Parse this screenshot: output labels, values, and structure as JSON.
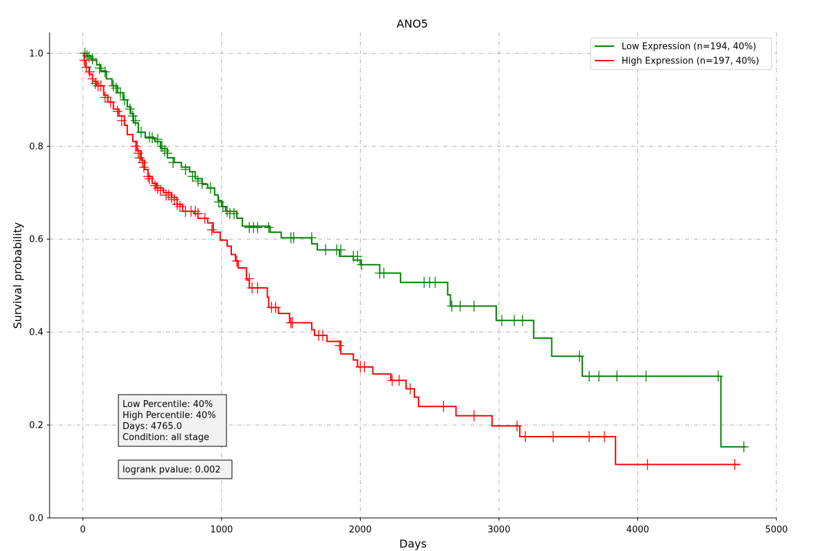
{
  "chart_data": {
    "type": "line",
    "title": "ANO5",
    "xlabel": "Days",
    "ylabel": "Survival probability",
    "xlim": [
      -240,
      5000
    ],
    "ylim": [
      0,
      1.045
    ],
    "xticks": [
      0,
      1000,
      2000,
      3000,
      4000,
      5000
    ],
    "xtick_labels": [
      "0",
      "1000",
      "2000",
      "3000",
      "4000",
      "5000"
    ],
    "yticks": [
      0.0,
      0.2,
      0.4,
      0.6,
      0.8,
      1.0
    ],
    "ytick_labels": [
      "0.0",
      "0.2",
      "0.4",
      "0.6",
      "0.8",
      "1.0"
    ],
    "grid": true,
    "legend_position": "top-right",
    "series": [
      {
        "name": "Low Expression (n=194, 40%)",
        "color": "#008000",
        "steps": [
          [
            0,
            1.0
          ],
          [
            30,
            0.995
          ],
          [
            60,
            0.985
          ],
          [
            100,
            0.975
          ],
          [
            130,
            0.962
          ],
          [
            170,
            0.945
          ],
          [
            210,
            0.93
          ],
          [
            250,
            0.915
          ],
          [
            290,
            0.9
          ],
          [
            320,
            0.885
          ],
          [
            345,
            0.87
          ],
          [
            365,
            0.85
          ],
          [
            400,
            0.83
          ],
          [
            450,
            0.818
          ],
          [
            520,
            0.81
          ],
          [
            560,
            0.795
          ],
          [
            610,
            0.775
          ],
          [
            660,
            0.765
          ],
          [
            710,
            0.755
          ],
          [
            770,
            0.745
          ],
          [
            810,
            0.73
          ],
          [
            860,
            0.718
          ],
          [
            900,
            0.71
          ],
          [
            950,
            0.695
          ],
          [
            975,
            0.683
          ],
          [
            1000,
            0.67
          ],
          [
            1030,
            0.66
          ],
          [
            1110,
            0.645
          ],
          [
            1150,
            0.628
          ],
          [
            1350,
            0.615
          ],
          [
            1430,
            0.603
          ],
          [
            1650,
            0.59
          ],
          [
            1690,
            0.577
          ],
          [
            1850,
            0.563
          ],
          [
            1950,
            0.555
          ],
          [
            2000,
            0.545
          ],
          [
            2140,
            0.527
          ],
          [
            2290,
            0.507
          ],
          [
            2630,
            0.48
          ],
          [
            2650,
            0.456
          ],
          [
            2980,
            0.425
          ],
          [
            3250,
            0.387
          ],
          [
            3380,
            0.348
          ],
          [
            3600,
            0.305
          ],
          [
            4600,
            0.153
          ],
          [
            4780,
            0.153
          ]
        ],
        "censored": [
          [
            15,
            1.0
          ],
          [
            30,
            0.995
          ],
          [
            45,
            0.992
          ],
          [
            70,
            0.988
          ],
          [
            120,
            0.968
          ],
          [
            160,
            0.96
          ],
          [
            220,
            0.93
          ],
          [
            240,
            0.925
          ],
          [
            270,
            0.915
          ],
          [
            300,
            0.9
          ],
          [
            340,
            0.88
          ],
          [
            360,
            0.865
          ],
          [
            380,
            0.855
          ],
          [
            420,
            0.83
          ],
          [
            480,
            0.82
          ],
          [
            500,
            0.818
          ],
          [
            540,
            0.815
          ],
          [
            570,
            0.8
          ],
          [
            590,
            0.79
          ],
          [
            610,
            0.785
          ],
          [
            650,
            0.765
          ],
          [
            740,
            0.75
          ],
          [
            790,
            0.735
          ],
          [
            830,
            0.725
          ],
          [
            860,
            0.72
          ],
          [
            920,
            0.71
          ],
          [
            980,
            0.68
          ],
          [
            1010,
            0.67
          ],
          [
            1040,
            0.66
          ],
          [
            1060,
            0.655
          ],
          [
            1090,
            0.655
          ],
          [
            1200,
            0.625
          ],
          [
            1230,
            0.625
          ],
          [
            1260,
            0.625
          ],
          [
            1340,
            0.625
          ],
          [
            1500,
            0.603
          ],
          [
            1520,
            0.603
          ],
          [
            1650,
            0.603
          ],
          [
            1750,
            0.577
          ],
          [
            1830,
            0.577
          ],
          [
            1860,
            0.577
          ],
          [
            1950,
            0.563
          ],
          [
            1980,
            0.563
          ],
          [
            2010,
            0.545
          ],
          [
            2140,
            0.527
          ],
          [
            2170,
            0.527
          ],
          [
            2460,
            0.507
          ],
          [
            2500,
            0.507
          ],
          [
            2540,
            0.507
          ],
          [
            2660,
            0.456
          ],
          [
            2720,
            0.456
          ],
          [
            2820,
            0.456
          ],
          [
            3020,
            0.425
          ],
          [
            3110,
            0.425
          ],
          [
            3170,
            0.425
          ],
          [
            3580,
            0.348
          ],
          [
            3650,
            0.305
          ],
          [
            3720,
            0.305
          ],
          [
            3850,
            0.305
          ],
          [
            4060,
            0.305
          ],
          [
            4580,
            0.305
          ],
          [
            4765,
            0.153
          ]
        ]
      },
      {
        "name": "High Expression (n=197, 40%)",
        "color": "#ff0000",
        "steps": [
          [
            0,
            1.0
          ],
          [
            10,
            0.985
          ],
          [
            20,
            0.97
          ],
          [
            45,
            0.955
          ],
          [
            70,
            0.94
          ],
          [
            100,
            0.93
          ],
          [
            150,
            0.91
          ],
          [
            180,
            0.895
          ],
          [
            220,
            0.88
          ],
          [
            260,
            0.865
          ],
          [
            300,
            0.845
          ],
          [
            320,
            0.825
          ],
          [
            360,
            0.81
          ],
          [
            390,
            0.79
          ],
          [
            420,
            0.77
          ],
          [
            445,
            0.75
          ],
          [
            470,
            0.735
          ],
          [
            500,
            0.72
          ],
          [
            530,
            0.71
          ],
          [
            580,
            0.7
          ],
          [
            640,
            0.69
          ],
          [
            680,
            0.675
          ],
          [
            720,
            0.66
          ],
          [
            800,
            0.655
          ],
          [
            830,
            0.645
          ],
          [
            900,
            0.635
          ],
          [
            940,
            0.615
          ],
          [
            990,
            0.598
          ],
          [
            1040,
            0.585
          ],
          [
            1070,
            0.567
          ],
          [
            1100,
            0.553
          ],
          [
            1120,
            0.538
          ],
          [
            1180,
            0.512
          ],
          [
            1200,
            0.495
          ],
          [
            1330,
            0.475
          ],
          [
            1340,
            0.453
          ],
          [
            1410,
            0.44
          ],
          [
            1490,
            0.42
          ],
          [
            1650,
            0.405
          ],
          [
            1670,
            0.393
          ],
          [
            1760,
            0.38
          ],
          [
            1860,
            0.353
          ],
          [
            1950,
            0.34
          ],
          [
            1980,
            0.325
          ],
          [
            2090,
            0.31
          ],
          [
            2220,
            0.296
          ],
          [
            2330,
            0.278
          ],
          [
            2390,
            0.26
          ],
          [
            2420,
            0.24
          ],
          [
            2690,
            0.22
          ],
          [
            2950,
            0.198
          ],
          [
            3150,
            0.175
          ],
          [
            3840,
            0.115
          ],
          [
            4740,
            0.115
          ]
        ],
        "censored": [
          [
            10,
            0.985
          ],
          [
            25,
            0.97
          ],
          [
            50,
            0.96
          ],
          [
            70,
            0.945
          ],
          [
            90,
            0.935
          ],
          [
            110,
            0.93
          ],
          [
            130,
            0.93
          ],
          [
            160,
            0.905
          ],
          [
            200,
            0.895
          ],
          [
            250,
            0.875
          ],
          [
            280,
            0.855
          ],
          [
            380,
            0.8
          ],
          [
            400,
            0.785
          ],
          [
            410,
            0.775
          ],
          [
            430,
            0.765
          ],
          [
            440,
            0.755
          ],
          [
            470,
            0.735
          ],
          [
            480,
            0.73
          ],
          [
            520,
            0.715
          ],
          [
            540,
            0.71
          ],
          [
            560,
            0.705
          ],
          [
            600,
            0.695
          ],
          [
            620,
            0.695
          ],
          [
            640,
            0.69
          ],
          [
            660,
            0.685
          ],
          [
            680,
            0.675
          ],
          [
            700,
            0.67
          ],
          [
            740,
            0.66
          ],
          [
            780,
            0.66
          ],
          [
            810,
            0.66
          ],
          [
            830,
            0.655
          ],
          [
            880,
            0.645
          ],
          [
            930,
            0.62
          ],
          [
            1110,
            0.553
          ],
          [
            1200,
            0.515
          ],
          [
            1220,
            0.495
          ],
          [
            1260,
            0.495
          ],
          [
            1360,
            0.453
          ],
          [
            1390,
            0.453
          ],
          [
            1500,
            0.42
          ],
          [
            1510,
            0.42
          ],
          [
            1700,
            0.393
          ],
          [
            1730,
            0.393
          ],
          [
            1850,
            0.371
          ],
          [
            2000,
            0.325
          ],
          [
            2030,
            0.325
          ],
          [
            2230,
            0.296
          ],
          [
            2280,
            0.296
          ],
          [
            2360,
            0.278
          ],
          [
            2600,
            0.24
          ],
          [
            2820,
            0.22
          ],
          [
            3130,
            0.198
          ],
          [
            3190,
            0.175
          ],
          [
            3390,
            0.175
          ],
          [
            3650,
            0.175
          ],
          [
            3760,
            0.175
          ],
          [
            4070,
            0.115
          ],
          [
            4700,
            0.115
          ]
        ]
      }
    ],
    "annotations": {
      "info_lines": [
        "Low Percentile: 40%",
        "High Percentile: 40%",
        "Days: 4765.0",
        "Condition: all stage"
      ],
      "pvalue": "logrank pvalue: 0.002"
    }
  }
}
